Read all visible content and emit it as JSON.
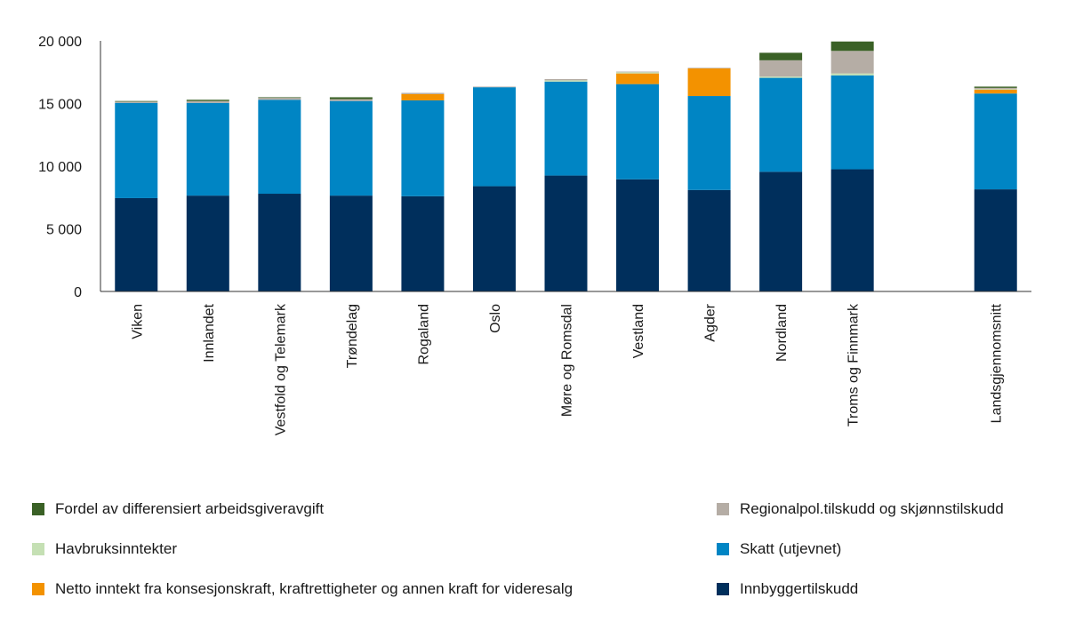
{
  "chart_data": {
    "type": "bar",
    "stacked": true,
    "categories": [
      "Viken",
      "Innlandet",
      "Vestfold og Telemark",
      "Trøndelag",
      "Rogaland",
      "Oslo",
      "Møre og Romsdal",
      "Vestland",
      "Agder",
      "Nordland",
      "Troms og Finnmark",
      "",
      "Landsgjennomsnitt"
    ],
    "ylim": [
      0,
      20000
    ],
    "yticks": [
      0,
      5000,
      10000,
      15000,
      20000
    ],
    "ytick_labels": [
      "0",
      "5 000",
      "10 000",
      "15 000",
      "20 000"
    ],
    "grid": false,
    "legend_position": "bottom",
    "series": [
      {
        "name": "Innbyggertilskudd",
        "color": "#002f5c",
        "values": [
          7450,
          7650,
          7800,
          7650,
          7600,
          8400,
          9250,
          8950,
          8100,
          9550,
          9750,
          null,
          8150
        ]
      },
      {
        "name": "Skatt (utjevnet)",
        "color": "#0085c4",
        "values": [
          7600,
          7400,
          7500,
          7550,
          7650,
          7900,
          7500,
          7600,
          7500,
          7500,
          7500,
          null,
          7650
        ]
      },
      {
        "name": "Netto inntekt fra konsesjonskraft, kraftrettigheter og annen kraft for videresalg",
        "color": "#f39200",
        "values": [
          0,
          0,
          0,
          0,
          500,
          0,
          0,
          850,
          2200,
          0,
          0,
          null,
          300
        ]
      },
      {
        "name": "Havbruksinntekter",
        "color": "#c5e0b4",
        "values": [
          0,
          0,
          0,
          0,
          0,
          0,
          100,
          100,
          0,
          100,
          150,
          null,
          50
        ]
      },
      {
        "name": "Regionalpol.tilskudd og skjønnstilskudd",
        "color": "#b5ada5",
        "values": [
          100,
          150,
          150,
          150,
          100,
          50,
          100,
          50,
          50,
          1300,
          1800,
          null,
          100
        ]
      },
      {
        "name": "Fordel av differensiert arbeidsgiveravgift",
        "color": "#3a6126",
        "values": [
          50,
          100,
          50,
          150,
          0,
          0,
          0,
          0,
          0,
          600,
          750,
          null,
          100
        ]
      }
    ]
  },
  "legend": {
    "left": [
      {
        "label": "Fordel av differensiert arbeidsgiveravgift",
        "color": "#3a6126"
      },
      {
        "label": "Havbruksinntekter",
        "color": "#c5e0b4"
      },
      {
        "label": "Netto inntekt fra konsesjonskraft, kraftrettigheter og annen kraft for videresalg",
        "color": "#f39200"
      }
    ],
    "right": [
      {
        "label": "Regionalpol.tilskudd og skjønnstilskudd",
        "color": "#b5ada5"
      },
      {
        "label": "Skatt (utjevnet)",
        "color": "#0085c4"
      },
      {
        "label": "Innbyggertilskudd",
        "color": "#002f5c"
      }
    ]
  }
}
